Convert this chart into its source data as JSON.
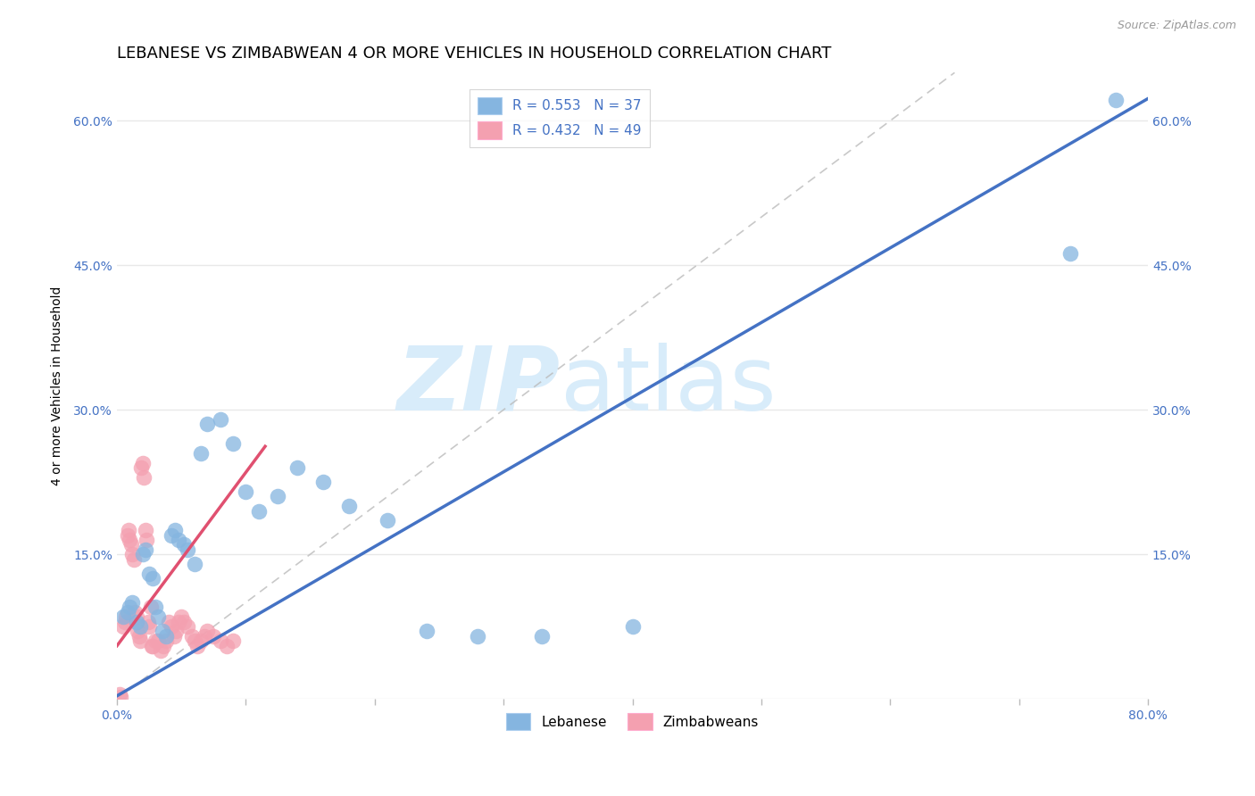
{
  "title": "LEBANESE VS ZIMBABWEAN 4 OR MORE VEHICLES IN HOUSEHOLD CORRELATION CHART",
  "source": "Source: ZipAtlas.com",
  "ylabel": "4 or more Vehicles in Household",
  "xlim": [
    0,
    0.8
  ],
  "ylim": [
    0,
    0.65
  ],
  "xticks": [
    0.0,
    0.1,
    0.2,
    0.3,
    0.4,
    0.5,
    0.6,
    0.7,
    0.8
  ],
  "yticks": [
    0.0,
    0.15,
    0.3,
    0.45,
    0.6
  ],
  "legend_labels": [
    "Lebanese",
    "Zimbabweans"
  ],
  "legend_R": [
    "R = 0.553",
    "R = 0.432"
  ],
  "legend_N": [
    "N = 37",
    "N = 49"
  ],
  "scatter_blue": {
    "x": [
      0.005,
      0.008,
      0.01,
      0.012,
      0.015,
      0.018,
      0.02,
      0.022,
      0.025,
      0.028,
      0.03,
      0.032,
      0.035,
      0.038,
      0.042,
      0.045,
      0.048,
      0.052,
      0.055,
      0.06,
      0.065,
      0.07,
      0.08,
      0.09,
      0.1,
      0.11,
      0.125,
      0.14,
      0.16,
      0.18,
      0.21,
      0.24,
      0.28,
      0.33,
      0.4,
      0.74,
      0.775
    ],
    "y": [
      0.085,
      0.09,
      0.095,
      0.1,
      0.08,
      0.075,
      0.15,
      0.155,
      0.13,
      0.125,
      0.095,
      0.085,
      0.07,
      0.065,
      0.17,
      0.175,
      0.165,
      0.16,
      0.155,
      0.14,
      0.255,
      0.285,
      0.29,
      0.265,
      0.215,
      0.195,
      0.21,
      0.24,
      0.225,
      0.2,
      0.185,
      0.07,
      0.065,
      0.065,
      0.075,
      0.462,
      0.622
    ]
  },
  "scatter_pink": {
    "x": [
      0.003,
      0.005,
      0.006,
      0.007,
      0.008,
      0.009,
      0.01,
      0.011,
      0.012,
      0.013,
      0.014,
      0.015,
      0.016,
      0.017,
      0.018,
      0.019,
      0.02,
      0.021,
      0.022,
      0.023,
      0.024,
      0.025,
      0.026,
      0.027,
      0.028,
      0.03,
      0.032,
      0.034,
      0.036,
      0.038,
      0.04,
      0.042,
      0.044,
      0.046,
      0.048,
      0.05,
      0.052,
      0.055,
      0.058,
      0.06,
      0.062,
      0.065,
      0.068,
      0.07,
      0.075,
      0.08,
      0.085,
      0.09,
      0.002
    ],
    "y": [
      0.002,
      0.075,
      0.08,
      0.085,
      0.17,
      0.175,
      0.165,
      0.16,
      0.15,
      0.145,
      0.09,
      0.085,
      0.07,
      0.065,
      0.06,
      0.24,
      0.245,
      0.23,
      0.175,
      0.165,
      0.08,
      0.075,
      0.095,
      0.055,
      0.055,
      0.06,
      0.06,
      0.05,
      0.055,
      0.06,
      0.08,
      0.075,
      0.065,
      0.07,
      0.08,
      0.085,
      0.08,
      0.075,
      0.065,
      0.06,
      0.055,
      0.06,
      0.065,
      0.07,
      0.065,
      0.06,
      0.055,
      0.06,
      0.005
    ]
  },
  "blue_color": "#85B5E0",
  "pink_color": "#F4A0B0",
  "blue_line_color": "#4472C4",
  "pink_line_color": "#E05070",
  "ref_line_color": "#BBBBBB",
  "grid_color": "#E8E8E8",
  "watermark_color": "#D8ECFA",
  "background_color": "#FFFFFF",
  "title_fontsize": 13,
  "axis_label_fontsize": 10,
  "tick_fontsize": 10,
  "tick_color": "#4472C4"
}
